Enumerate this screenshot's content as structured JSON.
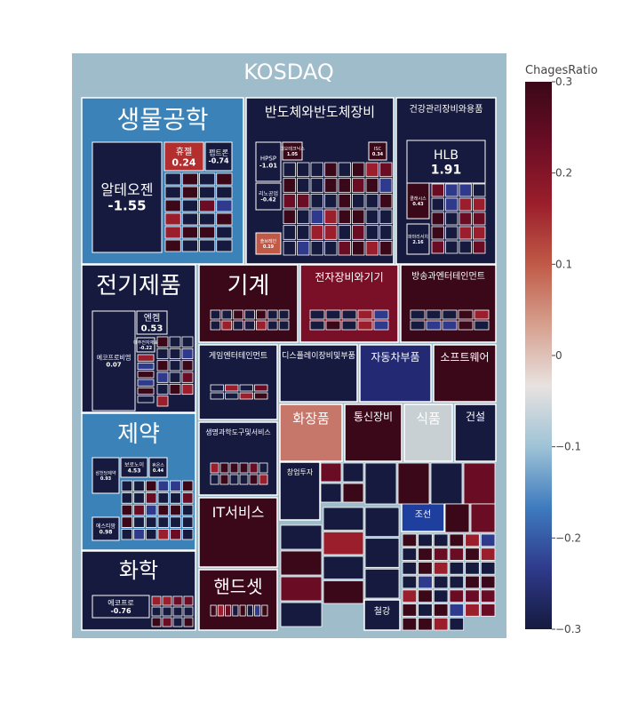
{
  "chart_data": {
    "type": "treemap",
    "root": "KOSDAQ",
    "colorbar": {
      "title": "ChagesRatio",
      "range": [
        -0.3,
        0.3
      ],
      "ticks": [
        0.3,
        0.2,
        0.1,
        0,
        -0.1,
        -0.2,
        -0.3
      ],
      "tick_labels": [
        "0.3",
        "0.2",
        "0.1",
        "0",
        "−0.1",
        "−0.2",
        "−0.3"
      ],
      "colorscale": [
        "#151a3e",
        "#2f3a8c",
        "#3e7bbf",
        "#9ec3d6",
        "#e8e2e0",
        "#d6a08e",
        "#c05a47",
        "#9a1e2b",
        "#6a0d24",
        "#3a0818"
      ]
    },
    "sectors": [
      {
        "name": "생물공학",
        "color": "#3b82b8",
        "stocks": [
          {
            "name": "알테오젠",
            "value": "-1.55",
            "color": "#151a3e"
          },
          {
            "name": "휴젤",
            "value": "0.24",
            "color": "#b52e2e"
          },
          {
            "name": "펩트론",
            "value": "-0.74",
            "color": "#151a3e"
          }
        ]
      },
      {
        "name": "반도체와반도체장비",
        "color": "#151a3e",
        "stocks": [
          {
            "name": "HPSP",
            "value": "-1.01",
            "color": "#151a3e"
          },
          {
            "name": "이오테크닉스",
            "value": "1.05",
            "color": "#3a0818"
          },
          {
            "name": "ISC",
            "value": "0.34",
            "color": "#3a0818"
          },
          {
            "name": "리노공업",
            "value": "-0.42",
            "color": "#151a3e"
          },
          {
            "name": "솔브레인",
            "value": "0.19",
            "color": "#c05a47"
          }
        ]
      },
      {
        "name": "건강관리장비와용품",
        "color": "#151a3e",
        "stocks": [
          {
            "name": "HLB",
            "value": "1.91",
            "color": "#151a3e"
          },
          {
            "name": "클래시스",
            "value": "0.43",
            "color": "#3a0818"
          },
          {
            "name": "파마리서치",
            "value": "2.16",
            "color": "#151a3e"
          }
        ]
      },
      {
        "name": "전기제품",
        "color": "#151a3e",
        "stocks": [
          {
            "name": "에코프로비엠",
            "value": "0.07",
            "color": "#151a3e"
          },
          {
            "name": "엔켐",
            "value": "0.53",
            "color": "#151a3e"
          },
          {
            "name": "대주전자재료",
            "value": "-0.22",
            "color": "#151a3e"
          }
        ]
      },
      {
        "name": "기계",
        "color": "#3a0818",
        "stocks": []
      },
      {
        "name": "전자장비와기기",
        "color": "#7a1028",
        "stocks": []
      },
      {
        "name": "방송과엔터테인먼트",
        "color": "#3a0818",
        "stocks": []
      },
      {
        "name": "제약",
        "color": "#3b82b8",
        "stocks": [
          {
            "name": "보로노이",
            "value": "4.53",
            "color": "#151a3e"
          },
          {
            "name": "삼천당제약",
            "value": "0.93",
            "color": "#151a3e"
          },
          {
            "name": "휴온스",
            "value": "0.44",
            "color": "#151a3e"
          },
          {
            "name": "에스티팜",
            "value": "0.98",
            "color": "#151a3e"
          }
        ]
      },
      {
        "name": "게임엔터테인먼트",
        "color": "#151a3e",
        "stocks": []
      },
      {
        "name": "디스플레이장비및부품",
        "color": "#151a3e",
        "stocks": []
      },
      {
        "name": "자동차부품",
        "color": "#232a73",
        "stocks": []
      },
      {
        "name": "소프트웨어",
        "color": "#3a0818",
        "stocks": []
      },
      {
        "name": "생명과학도구및서비스",
        "color": "#151a3e",
        "stocks": []
      },
      {
        "name": "화장품",
        "color": "#c7766a",
        "stocks": []
      },
      {
        "name": "통신장비",
        "color": "#3a0818",
        "stocks": []
      },
      {
        "name": "식품",
        "color": "#c8d0d4",
        "stocks": []
      },
      {
        "name": "건설",
        "color": "#151a3e",
        "stocks": []
      },
      {
        "name": "창업투자",
        "color": "#151a3e",
        "stocks": []
      },
      {
        "name": "IT서비스",
        "color": "#3a0818",
        "stocks": []
      },
      {
        "name": "화학",
        "color": "#151a3e",
        "stocks": [
          {
            "name": "에코프로",
            "value": "-0.76",
            "color": "#151a3e"
          }
        ]
      },
      {
        "name": "핸드셋",
        "color": "#3a0818",
        "stocks": []
      },
      {
        "name": "조선",
        "color": "#1e3f9e",
        "stocks": []
      },
      {
        "name": "철강",
        "color": "#151a3e",
        "stocks": []
      }
    ]
  }
}
